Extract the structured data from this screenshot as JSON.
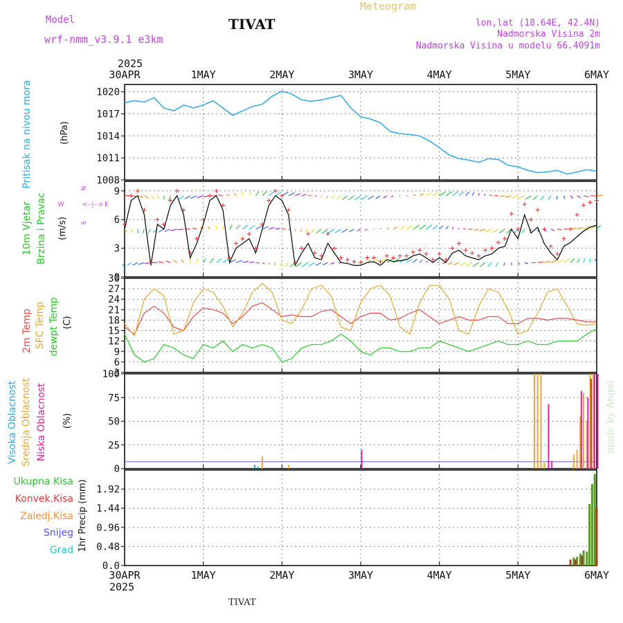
{
  "header": {
    "model_label": "Model",
    "model_name": "wrf-nmm_v3.9.1 e3km",
    "station": "TIVAT",
    "product": "Meteogram",
    "lonlat": "lon,lat (18.64E, 42.4N)",
    "elevation": "Nadmorska Visina 2m",
    "model_elevation": "Nadmorska Visina u modelu 66.4091m",
    "credit": "made by Angel",
    "footer_station": "TIVAT"
  },
  "colors": {
    "pressure": "#2aa8e8",
    "wind_label": "#22cc22",
    "wind_speed_line": "#000000",
    "wind_speed_marks": "#ee3333",
    "temp2m": "#e84a4a",
    "sfc_temp": "#e8a830",
    "dewpoint": "#22cc22",
    "cloud_high": "#2aa8e8",
    "cloud_mid": "#e8a830",
    "cloud_low": "#e0209a",
    "precip_total": "#22cc22",
    "precip_conv": "#ee3333",
    "precip_frz": "#ff8a30",
    "snow": "#5555ee",
    "graupel": "#22cccc",
    "title_purple": "#c040e0",
    "product_gold": "#e8c060"
  },
  "axis": {
    "top_year": "2025",
    "bottom_year": "2025",
    "dates": [
      "30APR",
      "1MAY",
      "2MAY",
      "3MAY",
      "4MAY",
      "5MAY",
      "6MAY"
    ],
    "hours_total": 144
  },
  "compass": {
    "north": "N",
    "south": "S",
    "east": "E",
    "west": "W",
    "arrows_h": "<--|-->"
  },
  "chart_data": [
    {
      "type": "line",
      "name": "pressure",
      "title": "Pritisak na nivou mora",
      "ylabel": "(hPa)",
      "ylim": [
        1008,
        1021
      ],
      "yticks": [
        1008,
        1011,
        1014,
        1017,
        1020
      ],
      "x": [
        0,
        3,
        6,
        9,
        12,
        15,
        18,
        21,
        24,
        27,
        30,
        33,
        36,
        39,
        42,
        45,
        48,
        51,
        54,
        57,
        60,
        63,
        66,
        69,
        72,
        75,
        78,
        81,
        84,
        87,
        90,
        93,
        96,
        99,
        102,
        105,
        108,
        111,
        114,
        117,
        120,
        123,
        126,
        129,
        132,
        135,
        138,
        141,
        144
      ],
      "values": [
        1018.5,
        1018.8,
        1018.6,
        1019.2,
        1017.8,
        1017.4,
        1018.2,
        1017.8,
        1018.2,
        1018.8,
        1017.8,
        1016.8,
        1017.4,
        1018.0,
        1018.3,
        1019.4,
        1020.1,
        1019.7,
        1018.9,
        1018.7,
        1018.9,
        1019.2,
        1019.5,
        1017.8,
        1016.6,
        1016.3,
        1015.8,
        1014.6,
        1014.3,
        1014.2,
        1014.0,
        1013.3,
        1012.4,
        1011.4,
        1010.9,
        1010.7,
        1010.4,
        1010.9,
        1010.8,
        1010.0,
        1009.8,
        1009.3,
        1009.0,
        1009.1,
        1009.3,
        1008.8,
        1009.1,
        1009.4,
        1009.2
      ]
    },
    {
      "type": "line",
      "name": "wind",
      "title": "10m Vjetar",
      "title2": "Brzina i Pravac",
      "ylabel": "(m/s)",
      "ylim": [
        0,
        10
      ],
      "yticks": [
        0,
        3,
        6,
        9
      ],
      "x": [
        0,
        2,
        4,
        6,
        8,
        10,
        12,
        14,
        16,
        18,
        20,
        22,
        24,
        26,
        28,
        30,
        32,
        34,
        36,
        38,
        40,
        42,
        44,
        46,
        48,
        50,
        52,
        54,
        56,
        58,
        60,
        62,
        64,
        66,
        68,
        70,
        72,
        74,
        76,
        78,
        80,
        82,
        84,
        86,
        88,
        90,
        92,
        94,
        96,
        98,
        100,
        102,
        104,
        106,
        108,
        110,
        112,
        114,
        116,
        118,
        120,
        122,
        124,
        126,
        128,
        130,
        132,
        134,
        136,
        138,
        140,
        142,
        144
      ],
      "values": [
        5,
        8,
        8.5,
        6.5,
        1.2,
        5.5,
        5,
        7.5,
        8.5,
        6.5,
        2,
        3.5,
        5.5,
        8,
        8.5,
        7,
        1.5,
        3,
        3.5,
        4,
        2.5,
        5,
        7.5,
        8.5,
        8,
        6.5,
        1.2,
        2.5,
        3.5,
        2,
        1.8,
        3.5,
        2.5,
        1.5,
        1.4,
        1.2,
        1.2,
        1.5,
        1.6,
        1.2,
        1.8,
        1.6,
        1.7,
        1.8,
        2.2,
        2.4,
        2,
        1.5,
        2,
        1.5,
        2.5,
        2.8,
        2.2,
        2,
        1.8,
        2.2,
        2.4,
        3,
        3.2,
        5,
        4,
        6.5,
        4.6,
        5.2,
        3.5,
        2.5,
        1.8,
        3.2,
        3.6,
        4.2,
        4.8,
        5.2,
        5.4
      ],
      "gust_marks": [
        5.5,
        8.5,
        9,
        7,
        1.5,
        6,
        5.5,
        8,
        9,
        7,
        2.5,
        4,
        6,
        8.5,
        9,
        7.5,
        2,
        3.5,
        4,
        4.5,
        3,
        5.5,
        8,
        9,
        8.5,
        7,
        1.5,
        3,
        4.5,
        2.5,
        2.2,
        4.5,
        3,
        2,
        1.8,
        1.6,
        1.5,
        2,
        2,
        1.6,
        2.2,
        2,
        2.2,
        2.2,
        2.6,
        2.8,
        2.4,
        1.8,
        2.4,
        1.8,
        3,
        3.5,
        2.8,
        2.5,
        2.2,
        2.8,
        3,
        3.6,
        4,
        6.6,
        5,
        7.6,
        6,
        7,
        5,
        3.2,
        2.4,
        4,
        5,
        6.5,
        7.5,
        7.8,
        8
      ]
    },
    {
      "type": "line",
      "name": "temperature",
      "title": "2m Temp",
      "title2": "SFC Temp",
      "title3": "dewpt Temp",
      "ylabel": "(C)",
      "ylim": [
        3,
        30
      ],
      "yticks": [
        3,
        6,
        9,
        12,
        15,
        18,
        21,
        24,
        27,
        30
      ],
      "x": [
        0,
        3,
        6,
        9,
        12,
        15,
        18,
        21,
        24,
        27,
        30,
        33,
        36,
        39,
        42,
        45,
        48,
        51,
        54,
        57,
        60,
        63,
        66,
        69,
        72,
        75,
        78,
        81,
        84,
        87,
        90,
        93,
        96,
        99,
        102,
        105,
        108,
        111,
        114,
        117,
        120,
        123,
        126,
        129,
        132,
        135,
        138,
        141,
        144
      ],
      "series": [
        {
          "name": "2m Temp",
          "values": [
            16,
            14,
            20,
            22,
            20,
            16,
            15,
            19,
            21.5,
            21,
            20,
            17,
            19,
            22,
            23,
            21,
            19,
            19.5,
            19,
            19,
            20.5,
            21,
            19,
            17,
            19,
            20,
            20,
            18,
            18.5,
            20,
            21,
            19,
            17,
            18,
            19,
            18,
            18,
            19,
            19,
            17,
            17,
            18.5,
            18.5,
            18,
            18.5,
            18.5,
            18,
            17.5,
            17.5
          ]
        },
        {
          "name": "SFC Temp",
          "values": [
            17,
            13.5,
            24,
            27,
            25,
            14,
            15,
            23,
            27,
            26,
            22,
            16,
            20,
            26,
            28.5,
            26,
            18,
            17,
            21,
            27,
            28,
            25,
            16,
            15,
            23,
            27,
            28,
            25,
            16,
            14,
            23,
            28,
            28,
            24,
            15,
            14,
            22,
            27,
            26,
            21,
            14,
            15,
            20,
            26,
            27,
            22,
            17,
            16.5,
            17
          ]
        },
        {
          "name": "dewpt Temp",
          "values": [
            14,
            8,
            6,
            7,
            11,
            10,
            8,
            7,
            11,
            10,
            12,
            9,
            11,
            10,
            11,
            10,
            6,
            7,
            10,
            11,
            11,
            12,
            14,
            12,
            9,
            8,
            10,
            10,
            9,
            9,
            10,
            10,
            12,
            11,
            10,
            9,
            10,
            11,
            12,
            11,
            11,
            12,
            11,
            11,
            12,
            12,
            12,
            14,
            15.5
          ]
        }
      ]
    },
    {
      "type": "bar",
      "name": "cloud",
      "title": "Visoka Oblacnost",
      "title2": "Srednja Oblacnost",
      "title3": "Niska Oblacnost",
      "ylabel": "(%)",
      "ylim": [
        0,
        100
      ],
      "yticks": [
        0,
        25,
        50,
        75,
        100
      ],
      "series": [
        {
          "name": "Visoka Oblacnost",
          "points": [
            [
              40,
              4
            ],
            [
              41,
              2
            ]
          ]
        },
        {
          "name": "Srednja Oblacnost",
          "points": [
            [
              42,
              13
            ],
            [
              50,
              4
            ],
            [
              125,
              100
            ],
            [
              126,
              100
            ],
            [
              127,
              100
            ],
            [
              128,
              6
            ],
            [
              137,
              15
            ],
            [
              138,
              20
            ],
            [
              139,
              55
            ],
            [
              140,
              80
            ],
            [
              141,
              50
            ],
            [
              142,
              100
            ],
            [
              143,
              100
            ]
          ]
        },
        {
          "name": "Niska Oblacnost",
          "points": [
            [
              72,
              20
            ],
            [
              129,
              68
            ],
            [
              130,
              8
            ],
            [
              139,
              82
            ],
            [
              141,
              75
            ],
            [
              142,
              95
            ],
            [
              143,
              100
            ],
            [
              144,
              100
            ]
          ]
        }
      ]
    },
    {
      "type": "bar",
      "name": "precipitation",
      "title": "Ukupna Kisa",
      "title2": "Konvek.Kisa",
      "title3": "Zaledj.Kisa",
      "title4": "Snijeg",
      "title5": "Grad",
      "ylabel": "1hr Precip (mm)",
      "ylim": [
        0,
        2.4
      ],
      "yticks": [
        0,
        0.48,
        0.96,
        1.44,
        1.92
      ],
      "series": [
        {
          "name": "Ukupna Kisa",
          "points": [
            [
              137,
              0.2
            ],
            [
              138,
              0.22
            ],
            [
              139,
              0.3
            ],
            [
              140,
              0.38
            ],
            [
              141,
              0.35
            ],
            [
              141.8,
              1.55
            ],
            [
              142.6,
              2.05
            ],
            [
              143.4,
              2.3
            ]
          ]
        },
        {
          "name": "Konvek.Kisa",
          "points": [
            [
              136,
              0.15
            ],
            [
              137.5,
              0.15
            ],
            [
              139.5,
              0.25
            ],
            [
              144,
              1.45
            ]
          ]
        }
      ]
    }
  ]
}
